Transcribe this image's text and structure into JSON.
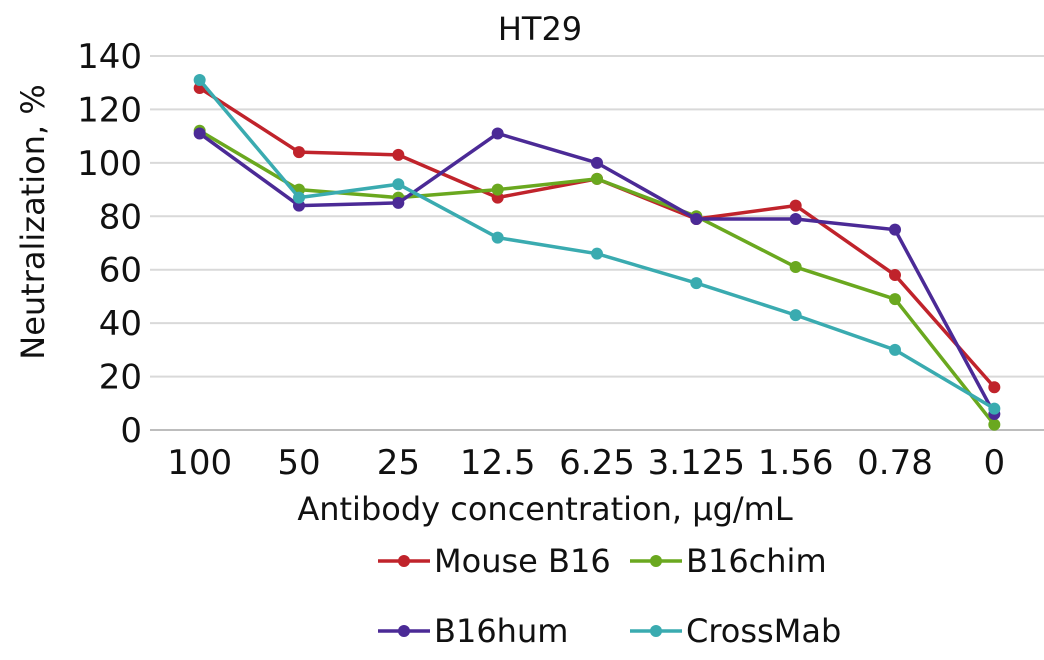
{
  "chart_data": {
    "type": "line",
    "title": "HT29",
    "xlabel": "Antibody concentration, µg/mL",
    "ylabel": "Neutralization, %",
    "categories": [
      "100",
      "50",
      "25",
      "12.5",
      "6.25",
      "3.125",
      "1.56",
      "0.78",
      "0"
    ],
    "ylim": [
      0,
      140
    ],
    "yticks": [
      0,
      20,
      40,
      60,
      80,
      100,
      120,
      140
    ],
    "grid": true,
    "legend_position": "bottom",
    "series": [
      {
        "name": "Mouse B16",
        "color": "#c0232b",
        "values": [
          128,
          104,
          103,
          87,
          94,
          79,
          84,
          58,
          16
        ]
      },
      {
        "name": "B16chim",
        "color": "#6aa81f",
        "values": [
          112,
          90,
          87,
          90,
          94,
          80,
          61,
          49,
          2
        ]
      },
      {
        "name": "B16hum",
        "color": "#4b2a96",
        "values": [
          111,
          84,
          85,
          111,
          100,
          79,
          79,
          75,
          6
        ]
      },
      {
        "name": "CrossMab",
        "color": "#3aabb0",
        "values": [
          131,
          87,
          92,
          72,
          66,
          55,
          43,
          30,
          8
        ]
      }
    ]
  }
}
